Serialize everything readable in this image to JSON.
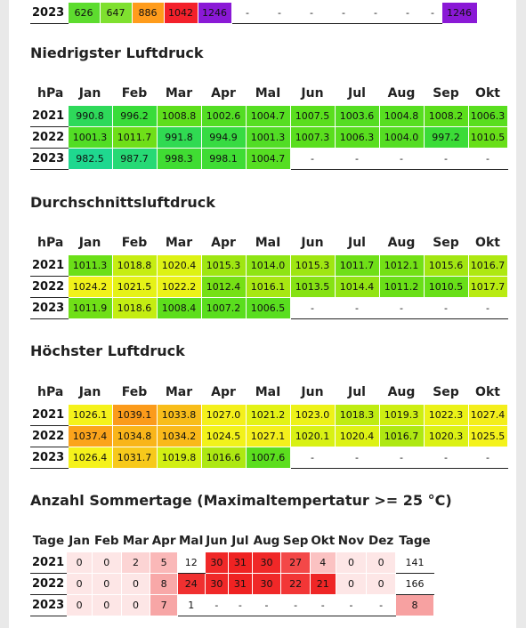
{
  "top_row": {
    "year": "2023",
    "cells": [
      {
        "v": "626",
        "c": "#5ddc2e"
      },
      {
        "v": "647",
        "c": "#7fe02f"
      },
      {
        "v": "886",
        "c": "#ff9c1c"
      },
      {
        "v": "1042",
        "c": "#f3212b"
      },
      {
        "v": "1246",
        "c": "#8a19d6"
      },
      {
        "v": "-",
        "c": ""
      },
      {
        "v": "-",
        "c": ""
      },
      {
        "v": "-",
        "c": ""
      },
      {
        "v": "-",
        "c": ""
      },
      {
        "v": "-",
        "c": ""
      },
      {
        "v": "-",
        "c": ""
      },
      {
        "v": "-",
        "c": ""
      },
      {
        "v": "1246",
        "c": "#8a19d6"
      }
    ]
  },
  "sections": [
    {
      "title": "Niedrigster Luftdruck",
      "unit_header": "hPa",
      "months": [
        "Jan",
        "Feb",
        "Mar",
        "Apr",
        "MaI",
        "Jun",
        "Jul",
        "Aug",
        "Sep",
        "Okt"
      ],
      "rows": [
        {
          "year": "2021",
          "cells": [
            {
              "v": "990.8",
              "c": "#2ed95a"
            },
            {
              "v": "996.2",
              "c": "#39dc3a"
            },
            {
              "v": "1008.8",
              "c": "#5ede1b"
            },
            {
              "v": "1002.6",
              "c": "#53dd24"
            },
            {
              "v": "1004.7",
              "c": "#56de22"
            },
            {
              "v": "1007.5",
              "c": "#5ade1e"
            },
            {
              "v": "1003.6",
              "c": "#55dd23"
            },
            {
              "v": "1004.8",
              "c": "#57de21"
            },
            {
              "v": "1008.2",
              "c": "#5cde1c"
            },
            {
              "v": "1006.3",
              "c": "#59de1f"
            }
          ]
        },
        {
          "year": "2022",
          "cells": [
            {
              "v": "1001.3",
              "c": "#52dd25"
            },
            {
              "v": "1011.7",
              "c": "#6fdf18"
            },
            {
              "v": "991.8",
              "c": "#30da52"
            },
            {
              "v": "994.9",
              "c": "#37db42"
            },
            {
              "v": "1001.3",
              "c": "#52dd25"
            },
            {
              "v": "1007.3",
              "c": "#5ade1e"
            },
            {
              "v": "1006.3",
              "c": "#59de1f"
            },
            {
              "v": "1004.0",
              "c": "#55dd23"
            },
            {
              "v": "997.2",
              "c": "#3bdc37"
            },
            {
              "v": "1010.5",
              "c": "#68df18"
            }
          ]
        },
        {
          "year": "2023",
          "cells": [
            {
              "v": "982.5",
              "c": "#1fd88f"
            },
            {
              "v": "987.7",
              "c": "#27d975"
            },
            {
              "v": "998.3",
              "c": "#40dc33"
            },
            {
              "v": "998.1",
              "c": "#3fdc34"
            },
            {
              "v": "1004.7",
              "c": "#56de22"
            },
            {
              "v": "-",
              "c": ""
            },
            {
              "v": "-",
              "c": ""
            },
            {
              "v": "-",
              "c": ""
            },
            {
              "v": "-",
              "c": ""
            },
            {
              "v": "-",
              "c": ""
            }
          ]
        }
      ]
    },
    {
      "title": "Durchschnittsluftdruck",
      "unit_header": "hPa",
      "months": [
        "Jan",
        "Feb",
        "Mar",
        "Apr",
        "MaI",
        "Jun",
        "Jul",
        "Aug",
        "Sep",
        "Okt"
      ],
      "rows": [
        {
          "year": "2021",
          "cells": [
            {
              "v": "1011.3",
              "c": "#6bdf18"
            },
            {
              "v": "1018.8",
              "c": "#c6ed12"
            },
            {
              "v": "1020.4",
              "c": "#ddf214"
            },
            {
              "v": "1015.3",
              "c": "#9fe612"
            },
            {
              "v": "1014.0",
              "c": "#8ee414"
            },
            {
              "v": "1015.3",
              "c": "#9fe612"
            },
            {
              "v": "1011.7",
              "c": "#6fdf18"
            },
            {
              "v": "1012.1",
              "c": "#73e016"
            },
            {
              "v": "1015.6",
              "c": "#a2e612"
            },
            {
              "v": "1016.7",
              "c": "#aee812"
            }
          ]
        },
        {
          "year": "2022",
          "cells": [
            {
              "v": "1024.2",
              "c": "#f1f21a"
            },
            {
              "v": "1021.5",
              "c": "#e6f217"
            },
            {
              "v": "1022.2",
              "c": "#ebf218"
            },
            {
              "v": "1012.4",
              "c": "#76e015"
            },
            {
              "v": "1016.1",
              "c": "#a8e712"
            },
            {
              "v": "1013.5",
              "c": "#86e214"
            },
            {
              "v": "1014.4",
              "c": "#93e413"
            },
            {
              "v": "1011.2",
              "c": "#6adf18"
            },
            {
              "v": "1010.5",
              "c": "#68df18"
            },
            {
              "v": "1017.7",
              "c": "#b9eb12"
            }
          ]
        },
        {
          "year": "2023",
          "cells": [
            {
              "v": "1011.9",
              "c": "#70df17"
            },
            {
              "v": "1018.6",
              "c": "#c4ed12"
            },
            {
              "v": "1008.4",
              "c": "#5dde1c"
            },
            {
              "v": "1007.2",
              "c": "#5ade1e"
            },
            {
              "v": "1006.5",
              "c": "#59de1f"
            },
            {
              "v": "-",
              "c": ""
            },
            {
              "v": "-",
              "c": ""
            },
            {
              "v": "-",
              "c": ""
            },
            {
              "v": "-",
              "c": ""
            },
            {
              "v": "-",
              "c": ""
            }
          ]
        }
      ]
    },
    {
      "title": "Höchster Luftdruck",
      "unit_header": "hPa",
      "months": [
        "Jan",
        "Feb",
        "Mar",
        "Apr",
        "MaI",
        "Jun",
        "Jul",
        "Aug",
        "Sep",
        "Okt"
      ],
      "rows": [
        {
          "year": "2021",
          "cells": [
            {
              "v": "1026.1",
              "c": "#f5f21b"
            },
            {
              "v": "1039.1",
              "c": "#fb9b1b"
            },
            {
              "v": "1033.8",
              "c": "#f8bd1a"
            },
            {
              "v": "1027.0",
              "c": "#f4f01c"
            },
            {
              "v": "1021.2",
              "c": "#e3f216"
            },
            {
              "v": "1023.0",
              "c": "#edf219"
            },
            {
              "v": "1018.3",
              "c": "#bfec12"
            },
            {
              "v": "1019.3",
              "c": "#cdee13"
            },
            {
              "v": "1022.3",
              "c": "#ebf218"
            },
            {
              "v": "1027.4",
              "c": "#f4ee1c"
            }
          ]
        },
        {
          "year": "2022",
          "cells": [
            {
              "v": "1037.4",
              "c": "#fba31b"
            },
            {
              "v": "1034.8",
              "c": "#f9b51a"
            },
            {
              "v": "1034.2",
              "c": "#f9b91a"
            },
            {
              "v": "1024.5",
              "c": "#f2f21a"
            },
            {
              "v": "1027.1",
              "c": "#f4f01c"
            },
            {
              "v": "1020.1",
              "c": "#d8f114"
            },
            {
              "v": "1020.4",
              "c": "#ddf214"
            },
            {
              "v": "1016.7",
              "c": "#aee812"
            },
            {
              "v": "1020.3",
              "c": "#dbf114"
            },
            {
              "v": "1025.5",
              "c": "#f4f21b"
            }
          ]
        },
        {
          "year": "2023",
          "cells": [
            {
              "v": "1026.4",
              "c": "#f5f21b"
            },
            {
              "v": "1031.7",
              "c": "#f7c91b"
            },
            {
              "v": "1019.8",
              "c": "#d2ef13"
            },
            {
              "v": "1016.6",
              "c": "#ade812"
            },
            {
              "v": "1007.6",
              "c": "#5bde1e"
            },
            {
              "v": "-",
              "c": ""
            },
            {
              "v": "-",
              "c": ""
            },
            {
              "v": "-",
              "c": ""
            },
            {
              "v": "-",
              "c": ""
            },
            {
              "v": "-",
              "c": ""
            }
          ]
        }
      ]
    }
  ],
  "summer": {
    "title": "Anzahl Sommertage (Maximaltempertatur >= 25 °C)",
    "headers": [
      "Tage",
      "Jan",
      "Feb",
      "Mar",
      "Apr",
      "MaI",
      "Jun",
      "Jul",
      "Aug",
      "Sep",
      "Okt",
      "Nov",
      "Dez",
      "Tage"
    ],
    "rows": [
      {
        "year": "2021",
        "cells": [
          {
            "v": "0",
            "c": "#fde6e6"
          },
          {
            "v": "0",
            "c": "#fde6e6"
          },
          {
            "v": "2",
            "c": "#fcd4d4"
          },
          {
            "v": "5",
            "c": "#fab8b8"
          },
          {
            "v": "12",
            "c": ""
          },
          {
            "v": "30",
            "c": "#f02828"
          },
          {
            "v": "31",
            "c": "#ef2222"
          },
          {
            "v": "30",
            "c": "#f02828"
          },
          {
            "v": "27",
            "c": "#f34848"
          },
          {
            "v": "4",
            "c": "#fbc2c2"
          },
          {
            "v": "0",
            "c": "#fde6e6"
          },
          {
            "v": "0",
            "c": "#fde6e6"
          },
          {
            "v": "141",
            "c": ""
          }
        ]
      },
      {
        "year": "2022",
        "cells": [
          {
            "v": "0",
            "c": "#fde6e6"
          },
          {
            "v": "0",
            "c": "#fde6e6"
          },
          {
            "v": "0",
            "c": "#fde6e6"
          },
          {
            "v": "8",
            "c": "#f8a8a8"
          },
          {
            "v": "24",
            "c": "#f03030"
          },
          {
            "v": "30",
            "c": "#f02828"
          },
          {
            "v": "31",
            "c": "#ef2222"
          },
          {
            "v": "30",
            "c": "#f02828"
          },
          {
            "v": "22",
            "c": "#f23636"
          },
          {
            "v": "21",
            "c": "#ef2626"
          },
          {
            "v": "0",
            "c": "#fde6e6"
          },
          {
            "v": "0",
            "c": "#fde6e6"
          },
          {
            "v": "166",
            "c": ""
          }
        ]
      },
      {
        "year": "2023",
        "cells": [
          {
            "v": "0",
            "c": "#fde6e6"
          },
          {
            "v": "0",
            "c": "#fde6e6"
          },
          {
            "v": "0",
            "c": "#fde6e6"
          },
          {
            "v": "7",
            "c": "#f7a6a6"
          },
          {
            "v": "1",
            "c": ""
          },
          {
            "v": "-",
            "c": ""
          },
          {
            "v": "-",
            "c": ""
          },
          {
            "v": "-",
            "c": ""
          },
          {
            "v": "-",
            "c": ""
          },
          {
            "v": "-",
            "c": ""
          },
          {
            "v": "-",
            "c": ""
          },
          {
            "v": "-",
            "c": ""
          },
          {
            "v": "8",
            "c": "#f7a1a1"
          }
        ]
      }
    ]
  }
}
